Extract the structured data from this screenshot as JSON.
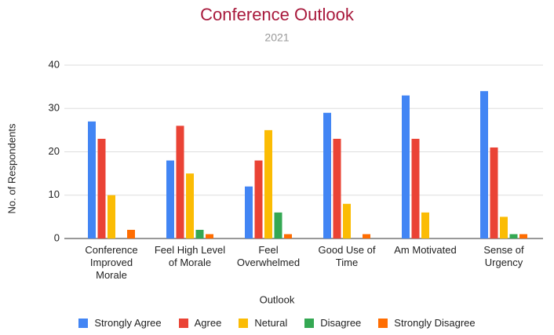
{
  "chart_data": {
    "type": "bar",
    "title": "Conference Outlook",
    "subtitle": "2021",
    "x_label": "Outlook",
    "y_label": "No. of Respondents",
    "categories": [
      "Conference Improved Morale",
      "Feel High Level of Morale",
      "Feel Overwhelmed",
      "Good Use of Time",
      "Am Motivated",
      "Sense of Urgency"
    ],
    "series": [
      {
        "name": "Strongly Agree",
        "color": "#4285f4",
        "values": [
          27,
          18,
          12,
          29,
          33,
          34
        ]
      },
      {
        "name": "Agree",
        "color": "#ea4335",
        "values": [
          23,
          26,
          18,
          23,
          23,
          21
        ]
      },
      {
        "name": "Netural",
        "color": "#fbbc04",
        "values": [
          10,
          15,
          25,
          8,
          6,
          5
        ]
      },
      {
        "name": "Disagree",
        "color": "#34a853",
        "values": [
          0,
          2,
          6,
          0,
          0,
          1
        ]
      },
      {
        "name": "Strongly Disagree",
        "color": "#ff6d01",
        "values": [
          2,
          1,
          1,
          1,
          0,
          1
        ]
      }
    ],
    "ylim": [
      0,
      40
    ],
    "yticks": [
      0,
      10,
      20,
      30,
      40
    ],
    "grid": true,
    "legend": "bottom"
  }
}
